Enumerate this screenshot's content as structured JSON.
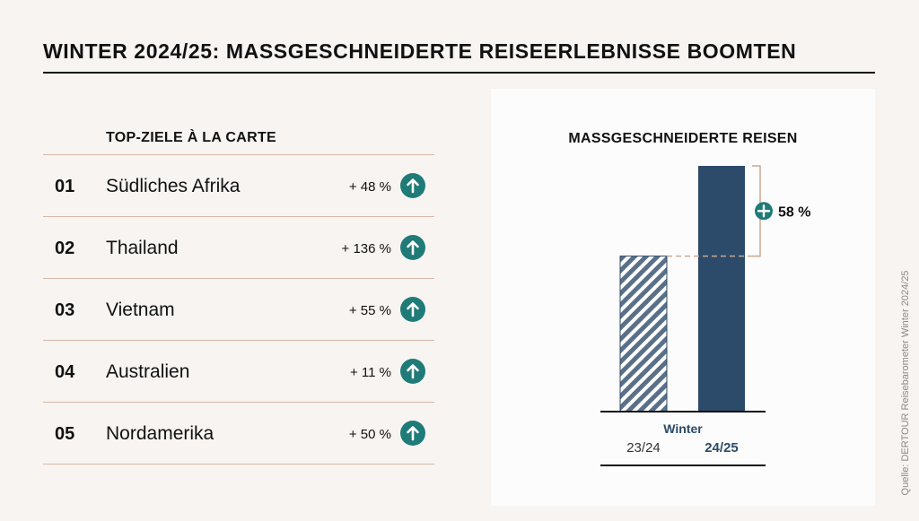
{
  "title": "WINTER 2024/25: MASSGESCHNEIDERTE REISEERLEBNISSE BOOMTEN",
  "list": {
    "header": "TOP-ZIELE À LA CARTE",
    "rows": [
      {
        "rank": "01",
        "name": "Südliches Afrika",
        "change": "+ 48 %"
      },
      {
        "rank": "02",
        "name": "Thailand",
        "change": "+ 136 %"
      },
      {
        "rank": "03",
        "name": "Vietnam",
        "change": "+ 55 %"
      },
      {
        "rank": "04",
        "name": "Australien",
        "change": "+ 11 %"
      },
      {
        "rank": "05",
        "name": "Nordamerika",
        "change": "+ 50 %"
      }
    ]
  },
  "chart_data": {
    "type": "bar",
    "title": "MASSGESCHNEIDERTE REISEN",
    "group_label": "Winter",
    "categories": [
      "23/24",
      "24/25"
    ],
    "values": [
      100,
      158
    ],
    "annotation": "58 %",
    "colors": {
      "bar": "#2c4a69",
      "accent": "#1f7b78",
      "connector": "#c9a891"
    }
  },
  "source": "Quelle: DERTOUR Reisebarometer Winter 2024/25"
}
